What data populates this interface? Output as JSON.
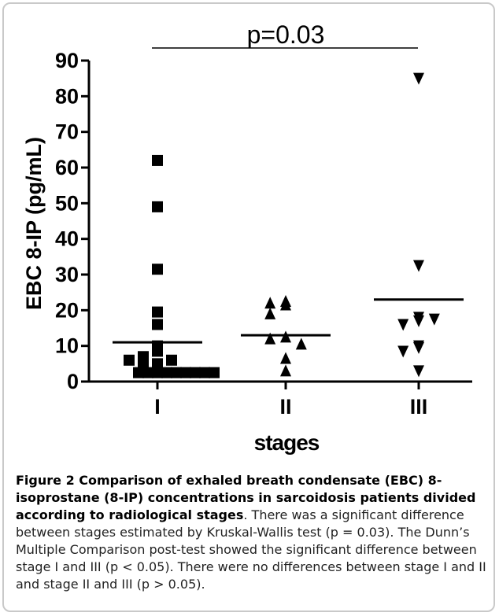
{
  "chart_data": {
    "type": "scatter",
    "ylabel": "EBC 8-IP (pg/mL)",
    "xlabel": "stages",
    "ylim": [
      0,
      90
    ],
    "yticks": [
      0,
      10,
      20,
      30,
      40,
      50,
      60,
      70,
      80,
      90
    ],
    "categories": [
      "I",
      "II",
      "III"
    ],
    "annotation": "p=0.03",
    "groups": [
      {
        "category": "I",
        "marker": "square",
        "means": 11,
        "points": [
          62,
          49,
          31.5,
          19.5,
          16,
          10,
          8.5,
          7,
          6,
          6,
          5,
          5,
          2.5,
          2.5,
          2.5,
          2.5,
          2.5,
          2.5,
          2.5,
          2.5,
          2.5
        ]
      },
      {
        "category": "II",
        "marker": "triangle-up",
        "means": 13,
        "points": [
          22.5,
          21.5,
          22,
          19,
          12.5,
          12,
          10.5,
          6.5,
          3
        ]
      },
      {
        "category": "III",
        "marker": "triangle-down",
        "means": 23,
        "points": [
          85,
          32.5,
          18,
          17,
          16,
          17.5,
          10,
          9.5,
          8.5,
          3
        ]
      }
    ]
  },
  "caption": {
    "bold": "Figure 2 Comparison of exhaled breath condensate (EBC) 8-isoprostane (8-IP) concentrations in sarcoidosis patients divided according to radiological stages",
    "rest": ". There was a significant difference between stages estimated by Kruskal-Wallis test (p = 0.03). The Dunn’s Multiple Comparison post-test showed the significant difference between stage I and III (p < 0.05). There were no differences between stage I and II and stage II and III (p > 0.05)."
  }
}
